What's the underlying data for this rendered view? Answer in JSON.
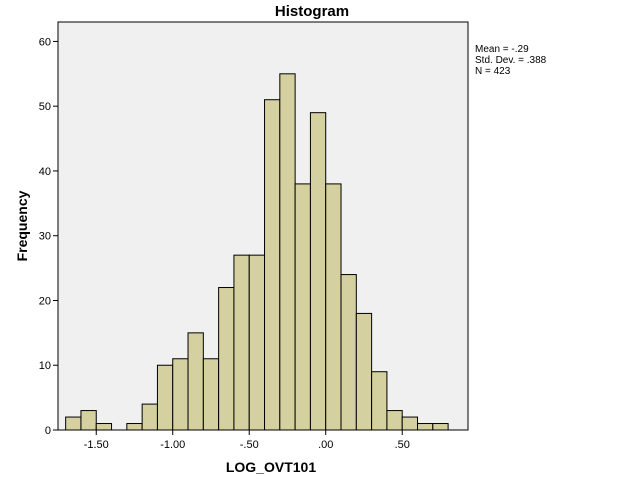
{
  "chart_data": {
    "type": "bar",
    "title": "Histogram",
    "xlabel": "LOG_OVT101",
    "ylabel": "Frequency",
    "xlim": [
      -1.75,
      0.93
    ],
    "ylim": [
      0,
      63
    ],
    "bin_width": 0.1,
    "x_ticks": [
      {
        "value": -1.5,
        "label": "-1.50"
      },
      {
        "value": -1.0,
        "label": "-1.00"
      },
      {
        "value": -0.5,
        "label": "-.50"
      },
      {
        "value": 0.0,
        "label": ".00"
      },
      {
        "value": 0.5,
        "label": ".50"
      }
    ],
    "y_ticks": [
      0,
      10,
      20,
      30,
      40,
      50,
      60
    ],
    "bins": [
      {
        "x": -1.7,
        "value": 2
      },
      {
        "x": -1.6,
        "value": 3
      },
      {
        "x": -1.5,
        "value": 1
      },
      {
        "x": -1.3,
        "value": 1
      },
      {
        "x": -1.2,
        "value": 4
      },
      {
        "x": -1.1,
        "value": 10
      },
      {
        "x": -1.0,
        "value": 11
      },
      {
        "x": -0.9,
        "value": 15
      },
      {
        "x": -0.8,
        "value": 11
      },
      {
        "x": -0.7,
        "value": 22
      },
      {
        "x": -0.6,
        "value": 27
      },
      {
        "x": -0.5,
        "value": 27
      },
      {
        "x": -0.4,
        "value": 51
      },
      {
        "x": -0.3,
        "value": 55
      },
      {
        "x": -0.2,
        "value": 38
      },
      {
        "x": -0.1,
        "value": 49
      },
      {
        "x": 0.0,
        "value": 38
      },
      {
        "x": 0.1,
        "value": 24
      },
      {
        "x": 0.2,
        "value": 18
      },
      {
        "x": 0.3,
        "value": 9
      },
      {
        "x": 0.4,
        "value": 3
      },
      {
        "x": 0.5,
        "value": 2
      },
      {
        "x": 0.6,
        "value": 1
      },
      {
        "x": 0.7,
        "value": 1
      }
    ],
    "colors": {
      "bar_fill": "#d4d0a0",
      "bar_stroke": "#000000",
      "plot_background": "#f0f0f0",
      "page_background": "#ffffff"
    },
    "grid": false,
    "stats": {
      "mean": "Mean = -.29",
      "std_dev": "Std. Dev. = .388",
      "n": "N = 423"
    }
  }
}
